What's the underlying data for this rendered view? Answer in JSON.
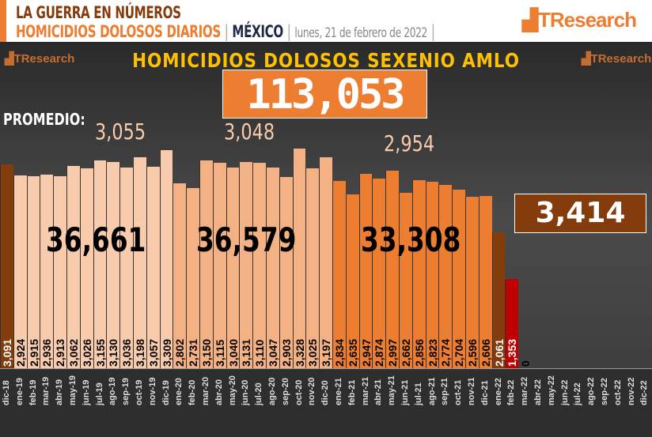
{
  "header": {
    "line1": "LA GUERRA EN NÚMEROS",
    "line2": "HOMICIDIOS DOLOSOS DIARIOS",
    "sep": "|",
    "country": "MÉXICO",
    "date": "lunes, 21 de febrero de 2022",
    "logo": "TResearch"
  },
  "chart_data": {
    "type": "bar",
    "title": "HOMICIDIOS DOLOSOS SEXENIO AMLO",
    "total": "113,053",
    "promedio_label": "PROMEDIO:",
    "averages": [
      "3,055",
      "3,048",
      "2,954"
    ],
    "period_totals": [
      "36,661",
      "36,579",
      "33,308"
    ],
    "projection": "3,414",
    "categories": [
      "dic-18",
      "ene-19",
      "feb-19",
      "mar-19",
      "abr-19",
      "may-19",
      "jun-19",
      "jul-19",
      "ago-19",
      "sep-19",
      "oct-19",
      "nov-19",
      "dic-19",
      "ene-20",
      "feb-20",
      "mar-20",
      "abr-20",
      "may-20",
      "jun-20",
      "jul-20",
      "ago-20",
      "sep-20",
      "oct-20",
      "nov-20",
      "dic-20",
      "ene-21",
      "feb-21",
      "mar-21",
      "abr-21",
      "may-21",
      "jun-21",
      "jul-21",
      "ago-21",
      "sep-21",
      "oct-21",
      "nov-21",
      "dic-21",
      "ene-22",
      "feb-22",
      "mar-22",
      "abr-22",
      "may-22",
      "jun-22",
      "jul-22",
      "ago-22",
      "sep-22",
      "oct-22",
      "nov-22",
      "dic-22"
    ],
    "values": [
      3091,
      2924,
      2915,
      2936,
      2913,
      3062,
      3026,
      3155,
      3130,
      3036,
      3198,
      3057,
      3309,
      2802,
      2731,
      3150,
      3115,
      3040,
      3131,
      3110,
      3047,
      2903,
      3328,
      3025,
      3197,
      2834,
      2635,
      2947,
      2874,
      2997,
      2662,
      2856,
      2823,
      2774,
      2704,
      2596,
      2606,
      2061,
      1353,
      0,
      null,
      null,
      null,
      null,
      null,
      null,
      null,
      null,
      null
    ],
    "labels": [
      "3,091",
      "2,924",
      "2,915",
      "2,936",
      "2,913",
      "3,062",
      "3,026",
      "3,155",
      "3,130",
      "3,036",
      "3,198",
      "3,057",
      "3,309",
      "2,802",
      "2,731",
      "3,150",
      "3,115",
      "3,040",
      "3,131",
      "3,110",
      "3,047",
      "2,903",
      "3,328",
      "3,025",
      "3,197",
      "2,834",
      "2,635",
      "2,947",
      "2,874",
      "2,997",
      "2,662",
      "2,856",
      "2,823",
      "2,774",
      "2,704",
      "2,596",
      "2,606",
      "2,061",
      "1,353",
      "0"
    ],
    "colors": {
      "dic-18": "#843c0c",
      "2019": "#f8cbad",
      "2020": "#f4b183",
      "2021": "#ed7d31",
      "ene-22": "#843c0c",
      "feb-22": "#c00000"
    }
  }
}
